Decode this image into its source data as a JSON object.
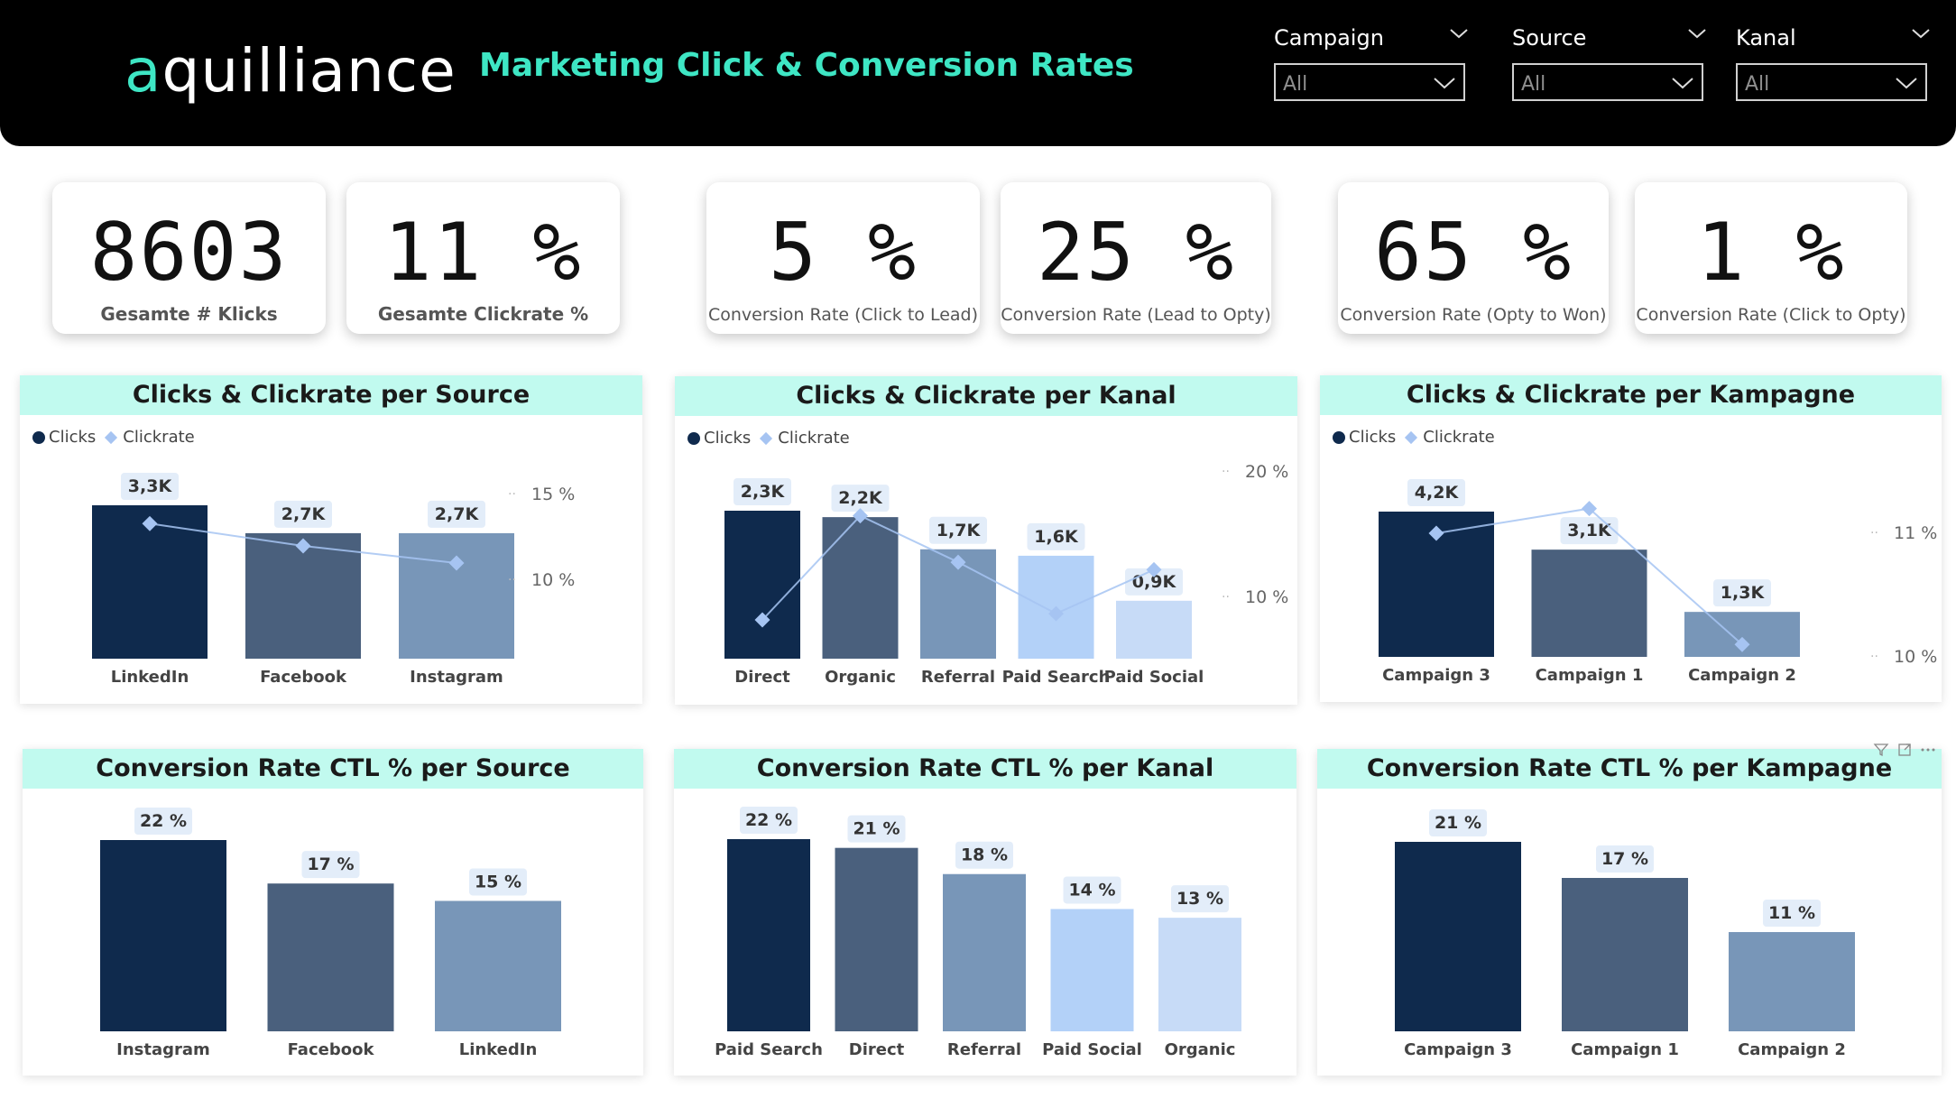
{
  "header": {
    "logo_a": "a",
    "logo_rest": "quilliance",
    "title": "Marketing Click & Conversion Rates",
    "slicers": [
      {
        "label": "Campaign",
        "value": "All"
      },
      {
        "label": "Source",
        "value": "All"
      },
      {
        "label": "Kanal",
        "value": "All"
      }
    ]
  },
  "kpis": [
    {
      "value": "8603",
      "label": "Gesamte # Klicks"
    },
    {
      "value": "11 %",
      "label": "Gesamte Clickrate %"
    },
    {
      "value": "5 %",
      "label": "Conversion Rate (Click to Lead)"
    },
    {
      "value": "25 %",
      "label": "Conversion Rate (Lead to Opty)"
    },
    {
      "value": "65 %",
      "label": "Conversion Rate (Opty to Won)"
    },
    {
      "value": "1 %",
      "label": "Conversion Rate (Click to Opty)"
    }
  ],
  "legend": {
    "clicks": "Clicks",
    "clickrate": "Clickrate"
  },
  "colors": {
    "accent": "#3ee6c4",
    "title_band": "#c1faef",
    "bars": [
      "#0f2a4d",
      "#4a607d",
      "#7896b8",
      "#b3d1f8",
      "#c7dbf7"
    ],
    "line": "#a6c4f2"
  },
  "chart_data": [
    {
      "type": "bar",
      "title": "Clicks & Clickrate per Source",
      "categories": [
        "LinkedIn",
        "Facebook",
        "Instagram"
      ],
      "series": [
        {
          "name": "Clicks",
          "values": [
            3300,
            2700,
            2700
          ],
          "labels": [
            "3,3K",
            "2,7K",
            "2,7K"
          ]
        },
        {
          "name": "Clickrate",
          "values": [
            13.3,
            12.0,
            11.0
          ]
        }
      ],
      "y2_ticks": [
        "15 %",
        "10 %"
      ]
    },
    {
      "type": "bar",
      "title": "Clicks & Clickrate per Kanal",
      "categories": [
        "Direct",
        "Organic",
        "Referral",
        "Paid Search",
        "Paid Social"
      ],
      "series": [
        {
          "name": "Clicks",
          "values": [
            2300,
            2200,
            1700,
            1600,
            900
          ],
          "labels": [
            "2,3K",
            "2,2K",
            "1,7K",
            "1,6K",
            "0,9K"
          ]
        },
        {
          "name": "Clickrate",
          "values": [
            8.2,
            16.5,
            12.8,
            8.7,
            12.2
          ]
        }
      ],
      "y2_ticks": [
        "20 %",
        "10 %"
      ]
    },
    {
      "type": "bar",
      "title": "Clicks & Clickrate per Kampagne",
      "categories": [
        "Campaign 3",
        "Campaign 1",
        "Campaign 2"
      ],
      "series": [
        {
          "name": "Clicks",
          "values": [
            4200,
            3100,
            1300
          ],
          "labels": [
            "4,2K",
            "3,1K",
            "1,3K"
          ]
        },
        {
          "name": "Clickrate",
          "values": [
            11.0,
            11.2,
            10.1
          ]
        }
      ],
      "y2_ticks": [
        "11 %",
        "10 %"
      ]
    },
    {
      "type": "bar",
      "title": "Conversion Rate CTL % per Source",
      "categories": [
        "Instagram",
        "Facebook",
        "LinkedIn"
      ],
      "values": [
        22,
        17,
        15
      ],
      "labels": [
        "22 %",
        "17 %",
        "15 %"
      ]
    },
    {
      "type": "bar",
      "title": "Conversion Rate CTL % per Kanal",
      "categories": [
        "Paid Search",
        "Direct",
        "Referral",
        "Paid Social",
        "Organic"
      ],
      "values": [
        22,
        21,
        18,
        14,
        13
      ],
      "labels": [
        "22 %",
        "21 %",
        "18 %",
        "14 %",
        "13 %"
      ]
    },
    {
      "type": "bar",
      "title": "Conversion Rate CTL % per Kampagne",
      "categories": [
        "Campaign 3",
        "Campaign 1",
        "Campaign 2"
      ],
      "values": [
        21,
        17,
        11
      ],
      "labels": [
        "21 %",
        "17 %",
        "11 %"
      ]
    }
  ]
}
